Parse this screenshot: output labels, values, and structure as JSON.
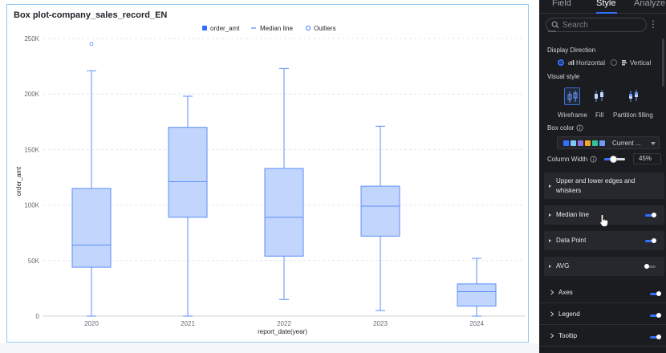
{
  "chart": {
    "title": "Box plot-company_sales_record_EN",
    "legend": {
      "series_label": "order_amt",
      "median_label": "Median line",
      "outliers_label": "Outliers"
    },
    "colors": {
      "box_fill": "#c2d5fc",
      "box_stroke": "#5b8ff9",
      "legend_marker": "#3370ff",
      "gridline": "#e4e7eb",
      "axis_text": "#646a73"
    }
  },
  "chart_data": {
    "type": "boxplot",
    "title": "Box plot-company_sales_record_EN",
    "xlabel": "report_date(year)",
    "ylabel": "order_amt",
    "ylim": [
      0,
      250000
    ],
    "y_ticks": [
      0,
      50000,
      100000,
      150000,
      200000,
      250000
    ],
    "y_tick_labels": [
      "0",
      "50K",
      "100K",
      "150K",
      "200K",
      "250K"
    ],
    "grid": true,
    "legend_position": "top-center",
    "categories": [
      "2020",
      "2021",
      "2022",
      "2023",
      "2024"
    ],
    "series": [
      {
        "name": "order_amt",
        "boxes": [
          {
            "category": "2020",
            "min": 0,
            "q1": 44000,
            "median": 64000,
            "q3": 115000,
            "max": 221000
          },
          {
            "category": "2021",
            "min": 0,
            "q1": 89000,
            "median": 121000,
            "q3": 170000,
            "max": 198000
          },
          {
            "category": "2022",
            "min": 15000,
            "q1": 54000,
            "median": 89000,
            "q3": 133000,
            "max": 223000
          },
          {
            "category": "2023",
            "min": 5000,
            "q1": 72000,
            "median": 99000,
            "q3": 117000,
            "max": 171000
          },
          {
            "category": "2024",
            "min": 0,
            "q1": 9000,
            "median": 22000,
            "q3": 29000,
            "max": 52000
          }
        ],
        "outliers": [
          {
            "category": "2020",
            "value": 245000
          }
        ]
      }
    ]
  },
  "side_panel": {
    "tabs": [
      {
        "label": "Field",
        "active": false
      },
      {
        "label": "Style",
        "active": true
      },
      {
        "label": "Analyze",
        "active": false
      }
    ],
    "search": {
      "placeholder": "Search",
      "value": ""
    },
    "display_direction": {
      "label": "Display Direction",
      "options": [
        {
          "label": "Horizontal",
          "selected": true
        },
        {
          "label": "Vertical",
          "selected": false
        }
      ]
    },
    "visual_style": {
      "label": "Visual style",
      "options": [
        {
          "label": "Wireframe",
          "selected": true
        },
        {
          "label": "Fill",
          "selected": false
        },
        {
          "label": "Partition filling",
          "selected": false
        }
      ]
    },
    "box_color": {
      "label": "Box color",
      "value": "Current ...",
      "swatches": [
        "#3370ff",
        "#7bc9f5",
        "#8d71e8",
        "#f5a623",
        "#33c49c",
        "#6a9cf8"
      ]
    },
    "column_width": {
      "label": "Column Width",
      "value": "45%",
      "level_percent": 45
    },
    "sections": [
      {
        "label_line1": "Upper and lower edges and",
        "label_line2": "whiskers",
        "has_toggle": false
      },
      {
        "label": "Median line",
        "toggle_on": true
      },
      {
        "label": "Data Point",
        "toggle_on": true
      },
      {
        "label": "AVG",
        "toggle_on": false
      }
    ],
    "rows": [
      {
        "label": "Axes",
        "toggle_on": true
      },
      {
        "label": "Legend",
        "toggle_on": true
      },
      {
        "label": "Tooltip",
        "toggle_on": true
      }
    ]
  }
}
